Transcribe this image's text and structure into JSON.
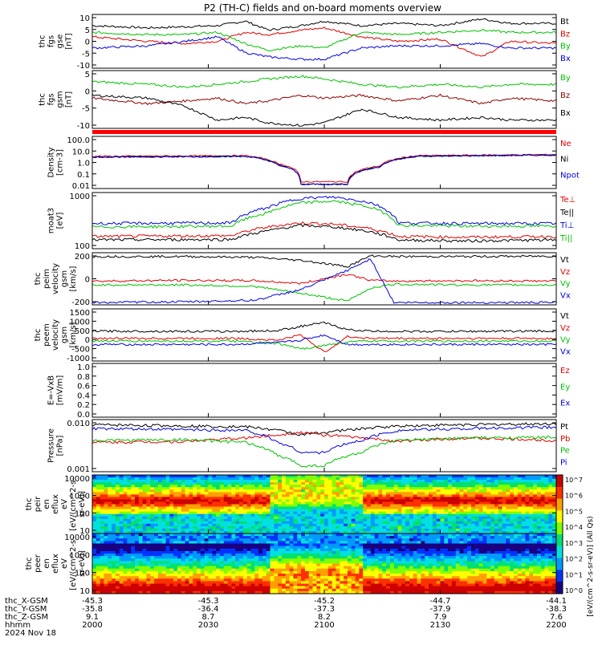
{
  "title": "P2 (TH-C) fields and on-board moments overview",
  "colors": {
    "black": "#000000",
    "red": "#e00000",
    "green": "#00c000",
    "blue": "#0000e0",
    "darkred": "#8b0000"
  },
  "chart_data": [
    {
      "type": "line",
      "id": "fgs-gse",
      "ylabel": [
        "thc",
        "fgs",
        "gse",
        "[nT]"
      ],
      "yticks": [
        "10",
        "5",
        "0",
        "-5",
        "-10"
      ],
      "ylim": [
        -12,
        12
      ],
      "series": [
        {
          "name": "Bt",
          "color": "#000000",
          "x": [
            0,
            0.12,
            0.2,
            0.27,
            0.33,
            0.38,
            0.45,
            0.5,
            0.58,
            0.66,
            0.75,
            0.84,
            0.9,
            1
          ],
          "y": [
            7,
            6,
            6.5,
            7,
            9,
            5,
            7,
            9,
            7,
            8,
            7,
            10,
            8,
            8
          ]
        },
        {
          "name": "Bz",
          "color": "#e00000",
          "x": [
            0,
            0.12,
            0.2,
            0.27,
            0.33,
            0.38,
            0.45,
            0.5,
            0.58,
            0.66,
            0.75,
            0.84,
            0.9,
            1
          ],
          "y": [
            2,
            0,
            -1,
            0,
            4,
            3,
            5,
            6,
            2,
            0,
            1,
            -7,
            0,
            -1
          ]
        },
        {
          "name": "By",
          "color": "#00c000",
          "x": [
            0,
            0.12,
            0.2,
            0.27,
            0.33,
            0.38,
            0.45,
            0.5,
            0.58,
            0.66,
            0.75,
            0.84,
            0.9,
            1
          ],
          "y": [
            4,
            3,
            3,
            4,
            -1,
            -4,
            -2,
            -3,
            4,
            3,
            4,
            5,
            4,
            4
          ]
        },
        {
          "name": "Bx",
          "color": "#0000e0",
          "x": [
            0,
            0.12,
            0.2,
            0.27,
            0.33,
            0.38,
            0.45,
            0.5,
            0.58,
            0.66,
            0.75,
            0.84,
            0.9,
            1
          ],
          "y": [
            -3,
            -2,
            0,
            2,
            -5,
            -7,
            -8,
            -8,
            -3,
            -2,
            -2,
            -1,
            -3,
            -3
          ]
        }
      ],
      "legend": [
        "Bt",
        "Bz",
        "By",
        "Bx"
      ]
    },
    {
      "type": "line",
      "id": "fgs-gsm",
      "ylabel": [
        "thc",
        "fgs",
        "gsm",
        "[nT]"
      ],
      "yticks": [
        "5",
        "0",
        "-5",
        "-10"
      ],
      "ylim": [
        -12,
        9
      ],
      "series": [
        {
          "name": "By",
          "color": "#00c000",
          "x": [
            0,
            0.12,
            0.2,
            0.27,
            0.33,
            0.38,
            0.45,
            0.5,
            0.58,
            0.66,
            0.75,
            0.84,
            0.9,
            1
          ],
          "y": [
            5,
            4,
            3,
            4,
            5,
            6,
            7,
            6,
            4,
            3,
            4,
            3,
            4,
            4
          ]
        },
        {
          "name": "Bz",
          "color": "#8b0000",
          "x": [
            0,
            0.12,
            0.2,
            0.27,
            0.33,
            0.38,
            0.45,
            0.5,
            0.58,
            0.66,
            0.75,
            0.84,
            0.9,
            1
          ],
          "y": [
            -1,
            -3,
            -2,
            -1,
            -3,
            -2,
            0,
            -1,
            0,
            -2,
            0,
            -3,
            -1,
            -2
          ]
        },
        {
          "name": "Bx",
          "color": "#000000",
          "x": [
            0,
            0.12,
            0.2,
            0.27,
            0.33,
            0.38,
            0.45,
            0.5,
            0.58,
            0.66,
            0.75,
            0.84,
            0.9,
            1
          ],
          "y": [
            0,
            -1,
            -4,
            -9,
            -8,
            -10,
            -11,
            -10,
            -5,
            -8,
            -9,
            -8,
            -9,
            -9
          ]
        }
      ],
      "legend": [
        "By",
        "Bz",
        "Bx"
      ]
    },
    {
      "type": "line",
      "id": "density",
      "log": true,
      "ylabel": [
        "Density",
        "[cm-3]"
      ],
      "yticks": [
        "100.0",
        "10.0",
        "1.0",
        "0.1",
        "0.01"
      ],
      "ylim": [
        0.005,
        200
      ],
      "series": [
        {
          "name": "Ne",
          "color": "#e00000",
          "x": [
            0,
            0.2,
            0.33,
            0.4,
            0.45,
            0.5,
            0.55,
            0.62,
            0.7,
            0.85,
            1
          ],
          "y": [
            3.5,
            3.8,
            4,
            0.8,
            0.02,
            0.02,
            0.02,
            0.5,
            4,
            4.5,
            5
          ]
        },
        {
          "name": "Ni",
          "color": "#000000",
          "x": [
            0,
            0.2,
            0.33,
            0.4,
            0.45,
            0.5,
            0.55,
            0.62,
            0.7,
            0.85,
            1
          ],
          "y": [
            3,
            3.2,
            3.5,
            0.6,
            0.012,
            0.012,
            0.012,
            0.4,
            3.5,
            4,
            4.5
          ]
        },
        {
          "name": "Npot",
          "color": "#0000e0",
          "x": [
            0,
            0.2,
            0.33,
            0.4,
            0.45,
            0.5,
            0.55,
            0.62,
            0.7,
            0.85,
            1
          ],
          "y": [
            3,
            3.2,
            3.5,
            0.6,
            0.012,
            0.012,
            0.012,
            0.4,
            3.5,
            4,
            4.5
          ]
        }
      ],
      "legend": [
        "Ne",
        "Ni",
        "Npot"
      ]
    },
    {
      "type": "line",
      "id": "temperature",
      "log": true,
      "ylabel": [
        "moat3",
        "[eV]"
      ],
      "yticks": [
        "1000",
        "100"
      ],
      "ylim": [
        10,
        1500
      ],
      "series": [
        {
          "name": "Te⊥",
          "color": "#e00000",
          "x": [
            0,
            0.3,
            0.38,
            0.45,
            0.52,
            0.6,
            0.66,
            0.8,
            1
          ],
          "y": [
            30,
            32,
            70,
            100,
            90,
            60,
            30,
            28,
            30
          ]
        },
        {
          "name": "Te||",
          "color": "#000000",
          "x": [
            0,
            0.3,
            0.38,
            0.45,
            0.52,
            0.6,
            0.66,
            0.8,
            1
          ],
          "y": [
            22,
            23,
            50,
            80,
            70,
            45,
            22,
            20,
            22
          ]
        },
        {
          "name": "Ti⊥",
          "color": "#0000e0",
          "x": [
            0,
            0.3,
            0.38,
            0.45,
            0.52,
            0.6,
            0.66,
            0.8,
            1
          ],
          "y": [
            95,
            100,
            400,
            900,
            1000,
            600,
            100,
            95,
            95
          ]
        },
        {
          "name": "Ti||",
          "color": "#00c000",
          "x": [
            0,
            0.3,
            0.38,
            0.45,
            0.52,
            0.6,
            0.66,
            0.8,
            1
          ],
          "y": [
            70,
            75,
            250,
            600,
            700,
            400,
            80,
            75,
            75
          ]
        }
      ],
      "legend": [
        "Te⊥",
        "Te||",
        "Ti⊥",
        "Ti||"
      ]
    },
    {
      "type": "line",
      "id": "peim-velocity",
      "ylabel": [
        "thc",
        "peim",
        "velocity",
        "gsm",
        "[km/s]"
      ],
      "yticks": [
        "200",
        "0",
        "-200"
      ],
      "ylim": [
        -300,
        380
      ],
      "series": [
        {
          "name": "Vt",
          "color": "#000000",
          "x": [
            0,
            0.2,
            0.35,
            0.45,
            0.55,
            0.6,
            0.65,
            0.8,
            1
          ],
          "y": [
            330,
            330,
            320,
            280,
            200,
            340,
            330,
            330,
            335
          ]
        },
        {
          "name": "Vz",
          "color": "#e00000",
          "x": [
            0,
            0.2,
            0.35,
            0.45,
            0.55,
            0.6,
            0.65,
            0.8,
            1
          ],
          "y": [
            10,
            20,
            15,
            -20,
            100,
            20,
            10,
            15,
            10
          ]
        },
        {
          "name": "Vy",
          "color": "#00c000",
          "x": [
            0,
            0.2,
            0.35,
            0.45,
            0.55,
            0.6,
            0.65,
            0.8,
            1
          ],
          "y": [
            -40,
            -40,
            -60,
            -150,
            -250,
            -80,
            -30,
            -40,
            -40
          ]
        },
        {
          "name": "Vx",
          "color": "#0000e0",
          "x": [
            0,
            0.2,
            0.35,
            0.45,
            0.55,
            0.6,
            0.65,
            0.8,
            1
          ],
          "y": [
            -270,
            -260,
            -240,
            -100,
            150,
            300,
            -270,
            -270,
            -270
          ]
        }
      ],
      "legend": [
        "Vt",
        "Vz",
        "Vy",
        "Vx"
      ]
    },
    {
      "type": "line",
      "id": "peem-velocity",
      "ylabel": [
        "thc",
        "peem",
        "velocity",
        "gsm",
        "[km/s]"
      ],
      "yticks": [
        "1500",
        "1000",
        "500",
        "0",
        "-500",
        "-1000"
      ],
      "ylim": [
        -1300,
        1700
      ],
      "series": [
        {
          "name": "Vt",
          "color": "#000000",
          "x": [
            0,
            0.3,
            0.4,
            0.45,
            0.5,
            0.55,
            0.6,
            0.7,
            1
          ],
          "y": [
            420,
            400,
            450,
            700,
            900,
            500,
            420,
            400,
            420
          ]
        },
        {
          "name": "Vz",
          "color": "#e00000",
          "x": [
            0,
            0.3,
            0.4,
            0.45,
            0.5,
            0.55,
            0.6,
            0.7,
            1
          ],
          "y": [
            0,
            10,
            -100,
            200,
            -800,
            100,
            10,
            0,
            0
          ]
        },
        {
          "name": "Vy",
          "color": "#00c000",
          "x": [
            0,
            0.3,
            0.4,
            0.45,
            0.5,
            0.55,
            0.6,
            0.7,
            1
          ],
          "y": [
            -150,
            -150,
            -300,
            -600,
            -400,
            -200,
            -150,
            -150,
            -150
          ]
        },
        {
          "name": "Vx",
          "color": "#0000e0",
          "x": [
            0,
            0.3,
            0.4,
            0.45,
            0.5,
            0.55,
            0.6,
            0.7,
            1
          ],
          "y": [
            -350,
            -350,
            -250,
            -100,
            200,
            -350,
            -350,
            -350,
            -350
          ]
        }
      ],
      "legend": [
        "Vt",
        "Vz",
        "Vy",
        "Vx"
      ]
    },
    {
      "type": "line",
      "id": "efield",
      "ylabel": [
        "E=-VxB",
        "[mV/m]"
      ],
      "yticks": [
        "1.0",
        "0.8",
        "0.6",
        "0.4",
        "0.2",
        "0.0"
      ],
      "ylim": [
        0,
        1
      ],
      "series": [],
      "legend": [
        "Ez",
        "Ey",
        "Ex"
      ],
      "legend_colors": [
        "#e00000",
        "#00c000",
        "#0000e0"
      ]
    },
    {
      "type": "line",
      "id": "pressure",
      "log": true,
      "ylabel": [
        "Pressure",
        "[nPa]"
      ],
      "yticks": [
        "0.010",
        "0.001"
      ],
      "ylim": [
        0.0007,
        0.08
      ],
      "series": [
        {
          "name": "Pt",
          "color": "#000000",
          "x": [
            0,
            0.2,
            0.33,
            0.4,
            0.45,
            0.5,
            0.58,
            0.66,
            0.8,
            1
          ],
          "y": [
            0.05,
            0.045,
            0.042,
            0.03,
            0.02,
            0.025,
            0.035,
            0.045,
            0.05,
            0.055
          ]
        },
        {
          "name": "Pb",
          "color": "#e00000",
          "x": [
            0,
            0.2,
            0.33,
            0.4,
            0.45,
            0.5,
            0.58,
            0.66,
            0.8,
            1
          ],
          "y": [
            0.01,
            0.011,
            0.015,
            0.02,
            0.025,
            0.02,
            0.015,
            0.011,
            0.015,
            0.012
          ]
        },
        {
          "name": "Pe",
          "color": "#00c000",
          "x": [
            0,
            0.2,
            0.33,
            0.4,
            0.45,
            0.5,
            0.58,
            0.66,
            0.8,
            1
          ],
          "y": [
            0.012,
            0.013,
            0.01,
            0.003,
            0.0012,
            0.0012,
            0.004,
            0.012,
            0.015,
            0.016
          ]
        },
        {
          "name": "Pi",
          "color": "#0000e0",
          "x": [
            0,
            0.2,
            0.33,
            0.4,
            0.45,
            0.5,
            0.58,
            0.66,
            0.8,
            1
          ],
          "y": [
            0.035,
            0.032,
            0.03,
            0.01,
            0.004,
            0.004,
            0.012,
            0.03,
            0.035,
            0.04
          ]
        }
      ],
      "legend": [
        "Pt",
        "Pb",
        "Pe",
        "Pi"
      ]
    },
    {
      "type": "heatmap",
      "id": "peir-spectrogram",
      "ylabel": [
        "thc",
        "peir",
        "en",
        "eflux",
        "eV",
        "[eV/(cm^2-s-",
        "sr-eV)]"
      ],
      "yticks": [
        "10000",
        "1000",
        "100",
        "10"
      ],
      "colorbar_ticks": [
        "10^7",
        "10^6",
        "10^5",
        "10^4",
        "10^3",
        "10^2",
        "10^1",
        "10^0"
      ]
    },
    {
      "type": "heatmap",
      "id": "peer-spectrogram",
      "ylabel": [
        "thc",
        "peer",
        "en",
        "eflux",
        "eV",
        "[eV/(cm^2-s-",
        "sr-eV)]"
      ],
      "yticks": [
        "10000",
        "1000",
        "100",
        "10"
      ],
      "colorbar_ticks": [
        "10^7",
        "10^6",
        "10^5",
        "10^4",
        "10^3",
        "10^2",
        "10^1",
        "10^0"
      ]
    }
  ],
  "colorbar_label": "[eV/(cm^2-s-sr-eV)] (All Qs)",
  "xaxis": {
    "rows": [
      {
        "label": "thc_X-GSM",
        "values": [
          "-45.3",
          "-45.3",
          "-45.2",
          "-44.7",
          "-44.1"
        ]
      },
      {
        "label": "thc_Y-GSM",
        "values": [
          "-35.8",
          "-36.4",
          "-37.3",
          "-37.9",
          "-38.3"
        ]
      },
      {
        "label": "thc_Z-GSM",
        "values": [
          "9.1",
          "8.7",
          "8.2",
          "7.9",
          "7.6"
        ]
      },
      {
        "label": "hhmm",
        "values": [
          "2000",
          "2030",
          "2100",
          "2130",
          "2200"
        ]
      }
    ],
    "date": "2024 Nov 18"
  }
}
